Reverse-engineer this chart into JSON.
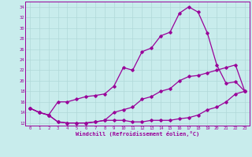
{
  "xlabel": "Windchill (Refroidissement éolien,°C)",
  "bg_color": "#c8ecec",
  "grid_color": "#b0d8d8",
  "line_color": "#990099",
  "x_ticks": [
    0,
    1,
    2,
    3,
    4,
    5,
    6,
    7,
    8,
    9,
    10,
    11,
    12,
    13,
    14,
    15,
    16,
    17,
    18,
    19,
    20,
    21,
    22,
    23
  ],
  "ylim": [
    11.5,
    35.0
  ],
  "yticks": [
    12,
    14,
    16,
    18,
    20,
    22,
    24,
    26,
    28,
    30,
    32,
    34
  ],
  "line1_x": [
    0,
    1,
    2,
    3,
    4,
    5,
    6,
    7,
    8,
    9,
    10,
    11,
    12,
    13,
    14,
    15,
    16,
    17,
    18,
    19,
    20,
    21,
    22,
    23
  ],
  "line1_y": [
    14.8,
    14.0,
    13.5,
    12.2,
    12.0,
    12.0,
    12.0,
    12.2,
    12.5,
    12.5,
    12.5,
    12.2,
    12.2,
    12.5,
    12.5,
    12.5,
    12.8,
    13.0,
    13.5,
    14.5,
    15.0,
    16.0,
    17.5,
    18.0
  ],
  "line2_x": [
    0,
    1,
    2,
    3,
    4,
    5,
    6,
    7,
    8,
    9,
    10,
    11,
    12,
    13,
    14,
    15,
    16,
    17,
    18,
    19,
    20,
    21,
    22,
    23
  ],
  "line2_y": [
    14.8,
    14.0,
    13.5,
    16.0,
    16.0,
    16.5,
    17.0,
    17.2,
    17.5,
    19.0,
    22.5,
    22.0,
    25.5,
    26.2,
    28.5,
    29.2,
    32.8,
    34.0,
    33.0,
    29.0,
    23.0,
    19.5,
    19.8,
    18.0
  ],
  "line3_x": [
    0,
    1,
    2,
    3,
    4,
    5,
    6,
    7,
    8,
    9,
    10,
    11,
    12,
    13,
    14,
    15,
    16,
    17,
    18,
    19,
    20,
    21,
    22,
    23
  ],
  "line3_y": [
    14.8,
    14.0,
    13.5,
    12.2,
    12.0,
    12.0,
    12.0,
    12.2,
    12.5,
    14.0,
    14.5,
    15.0,
    16.5,
    17.0,
    18.0,
    18.5,
    20.0,
    20.8,
    21.0,
    21.5,
    22.0,
    22.5,
    23.0,
    18.0
  ]
}
